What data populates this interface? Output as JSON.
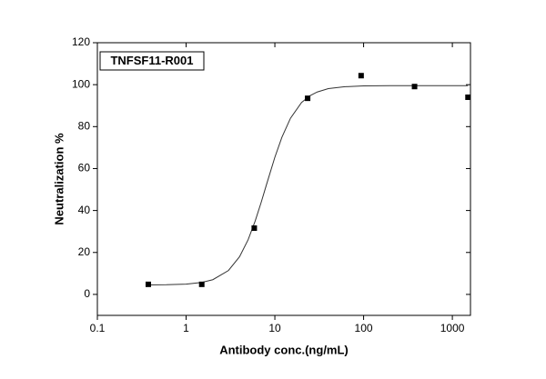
{
  "chart_data": {
    "type": "scatter",
    "label": "TNFSF11-R001",
    "xlabel": "Antibody conc.(ng/mL)",
    "ylabel": "Neutralization %",
    "xscale": "log",
    "x": [
      0.375,
      1.5,
      5.86,
      23.4,
      93.75,
      375,
      1500
    ],
    "values": [
      4.8,
      4.8,
      31.6,
      93.5,
      104.3,
      99.1,
      94
    ],
    "color": "#000000",
    "fit_curve": {
      "color": "#333333",
      "x": [
        0.375,
        0.6,
        1,
        1.5,
        2,
        3,
        4,
        5,
        6,
        7,
        8,
        10,
        12,
        15,
        20,
        25,
        30,
        40,
        60,
        100,
        200,
        400,
        800,
        1500
      ],
      "values": [
        4.53,
        4.61,
        4.92,
        5.71,
        7.02,
        11.4,
        17.96,
        26.1,
        35.0,
        43.8,
        52.0,
        65.4,
        74.9,
        84.0,
        91.5,
        94.8,
        96.5,
        98.1,
        99.0,
        99.4,
        99.5,
        99.5,
        99.5,
        99.5
      ]
    },
    "xlim": [
      0.1,
      1600
    ],
    "ylim": [
      -10,
      120
    ],
    "xticks": [
      0.1,
      1,
      10,
      100,
      1000
    ],
    "yticks": [
      0,
      20,
      40,
      60,
      80,
      100,
      120
    ]
  }
}
